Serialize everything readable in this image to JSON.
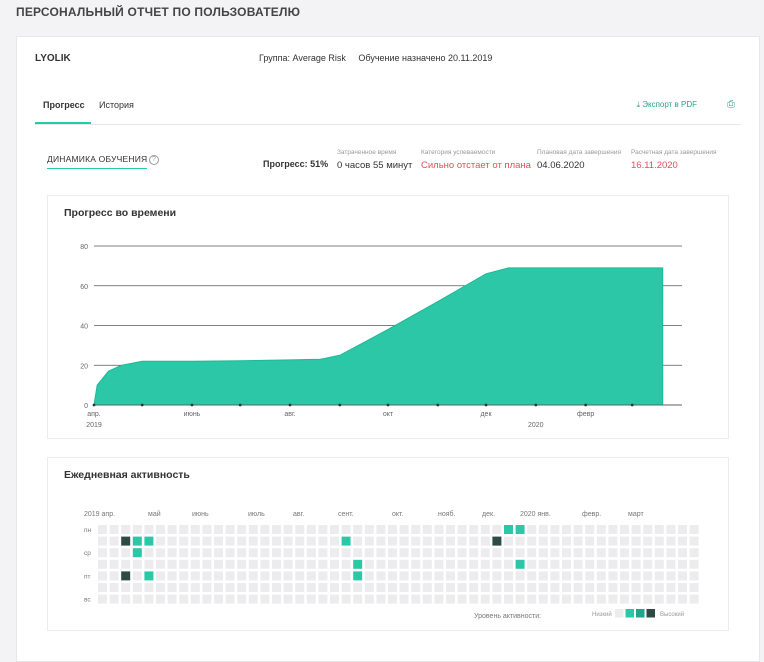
{
  "header": {
    "title": "ПЕРСОНАЛЬНЫЙ ОТЧЕТ ПО ПОЛЬЗОВАТЕЛЮ"
  },
  "user": {
    "name": "LYOLIK",
    "group": "Группа: Average Risk",
    "assigned": "Обучение назначено 20.11.2019"
  },
  "tabs": [
    {
      "label": "Прогресс",
      "active": true
    },
    {
      "label": "История",
      "active": false
    }
  ],
  "actions": {
    "export_label": "Экспорт в PDF",
    "export_icon": "download-icon",
    "print_icon": "printer-icon"
  },
  "summary": {
    "dynamics_label": "ДИНАМИКА ОБУЧЕНИЯ",
    "help_icon": "?",
    "progress_label": "Прогресс: 51%",
    "time_label": "Затраченное время",
    "time_value": "0 часов 55 минут",
    "category_label": "Категория успеваемости",
    "category_value": "Сильно отстает от плана",
    "planned_label": "Плановая дата завершения",
    "planned_value": "04.06.2020",
    "estimated_label": "Расчетная дата завершения",
    "estimated_value": "16.11.2020"
  },
  "colors": {
    "accent": "#2bc7a6",
    "alert": "#e0505a",
    "dark": "#2e4a47",
    "empty_cell": "#ececee"
  },
  "progress_chart": {
    "title": "Прогресс во времени",
    "chart_data": {
      "type": "area",
      "ylim": [
        0,
        80
      ],
      "yticks": [
        "0",
        "20",
        "40",
        "60",
        "80"
      ],
      "xticks": [
        "апр.",
        "июнь",
        "авг.",
        "окт",
        "дек",
        "февр"
      ],
      "year_labels": [
        "2019",
        "2020"
      ],
      "x": [
        "2019-04-01",
        "2019-04-03",
        "2019-04-10",
        "2019-04-18",
        "2019-05-01",
        "2019-06-01",
        "2019-07-01",
        "2019-08-01",
        "2019-08-20",
        "2019-09-01",
        "2019-10-01",
        "2019-11-01",
        "2019-12-01",
        "2019-12-15",
        "2020-01-01",
        "2020-02-01",
        "2020-03-01",
        "2020-03-20"
      ],
      "y": [
        0,
        10,
        17,
        20,
        22,
        22,
        22.3,
        22.7,
        23,
        25,
        38,
        52,
        66,
        69,
        69,
        69,
        69,
        69
      ],
      "grid": true,
      "legend": "none"
    }
  },
  "activity": {
    "title": "Ежедневная активность",
    "month_labels": [
      "2019 апр.",
      "май",
      "июнь",
      "июль",
      "авг.",
      "сент.",
      "окт.",
      "нояб.",
      "дек.",
      "2020 янв.",
      "февр.",
      "март"
    ],
    "day_labels": [
      "пн",
      "ср",
      "пт",
      "вс"
    ],
    "legend_label": "Уровень активности:",
    "legend_low": "Низкий",
    "legend_high": "Высокий",
    "cells": [
      {
        "week": 35,
        "day": 0,
        "level": 2
      },
      {
        "week": 36,
        "day": 0,
        "level": 2
      },
      {
        "week": 34,
        "day": 1,
        "level": 3
      },
      {
        "week": 36,
        "day": 3,
        "level": 2
      },
      {
        "week": 2,
        "day": 1,
        "level": 3
      },
      {
        "week": 3,
        "day": 1,
        "level": 2
      },
      {
        "week": 4,
        "day": 1,
        "level": 2
      },
      {
        "week": 3,
        "day": 2,
        "level": 2
      },
      {
        "week": 2,
        "day": 4,
        "level": 3
      },
      {
        "week": 4,
        "day": 4,
        "level": 2
      },
      {
        "week": 21,
        "day": 1,
        "level": 2
      },
      {
        "week": 22,
        "day": 3,
        "level": 2
      },
      {
        "week": 22,
        "day": 4,
        "level": 2
      }
    ]
  }
}
